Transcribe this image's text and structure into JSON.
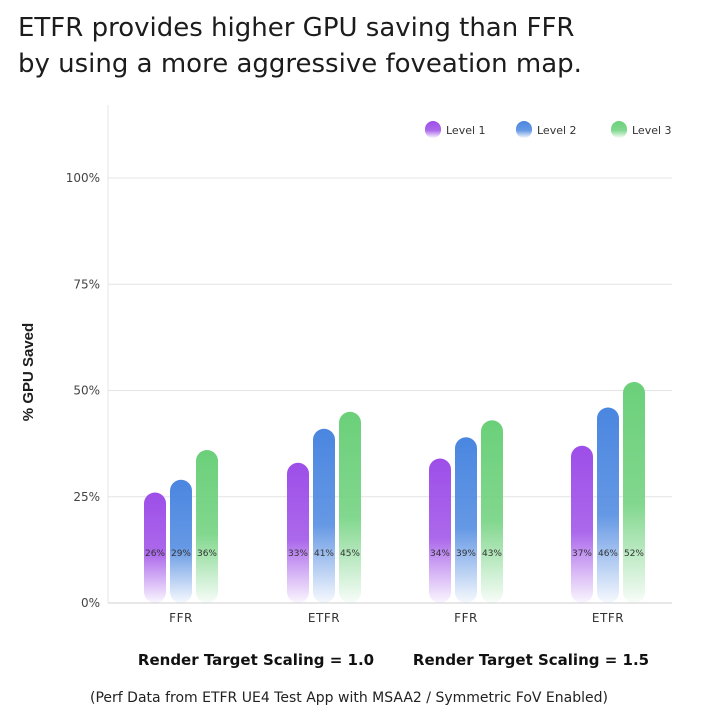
{
  "title": {
    "line1": "ETFR provides higher GPU saving than FFR",
    "line2": "by using a more aggressive foveation map."
  },
  "chart_data": {
    "type": "bar",
    "title": "ETFR provides higher GPU saving than FFR by using a more aggressive foveation map.",
    "ylabel": "% GPU Saved",
    "xlabel": "",
    "ylim": [
      0,
      100
    ],
    "yticks": [
      0,
      25,
      50,
      75,
      100
    ],
    "ytick_labels": [
      "0%",
      "25%",
      "50%",
      "75%",
      "100%"
    ],
    "grid": true,
    "legend_position": "top-right",
    "categories": [
      "FFR",
      "ETFR",
      "FFR",
      "ETFR"
    ],
    "series": [
      {
        "name": "Level 1",
        "values": [
          26,
          33,
          34,
          37
        ],
        "labels": [
          "26%",
          "33%",
          "34%",
          "37%"
        ]
      },
      {
        "name": "Level 2",
        "values": [
          29,
          41,
          39,
          46
        ],
        "labels": [
          "29%",
          "41%",
          "39%",
          "46%"
        ]
      },
      {
        "name": "Level 3",
        "values": [
          36,
          45,
          43,
          52
        ],
        "labels": [
          "36%",
          "45%",
          "43%",
          "52%"
        ]
      }
    ],
    "group_labels": [
      "Render Target Scaling = 1.0",
      "Render Target Scaling = 1.5"
    ],
    "footnote": "(Perf Data from ETFR UE4 Test App with MSAA2 / Symmetric FoV Enabled)"
  },
  "colors": {
    "level1": "#9d4ee8",
    "level2": "#4a86e0",
    "level3": "#6bd07a",
    "grid": "#e4e4e4",
    "axis": "#cfcfcf"
  }
}
